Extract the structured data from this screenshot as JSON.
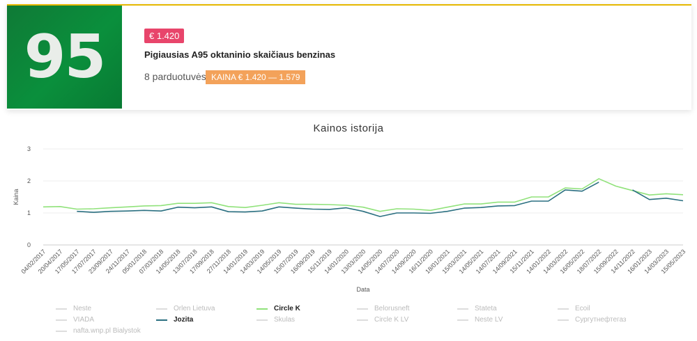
{
  "product": {
    "tile_text": "95",
    "price_badge": "€ 1.420",
    "headline": "Pigiausias A95 oktaninio skaičiaus benzinas",
    "stores_text": "8 parduotuvės",
    "range_badge": "KAINA € 1.420 — 1.579"
  },
  "colors": {
    "circle_k": "#90e27a",
    "jozita": "#2a6f80",
    "price_badge": "#e8456b",
    "range_badge": "#f3a25a"
  },
  "chart_data": {
    "type": "line",
    "title": "Kainos istorija",
    "xlabel": "Data",
    "ylabel": "Kaina",
    "ylim": [
      0,
      3
    ],
    "yticks": [
      "0",
      "1",
      "2",
      "3"
    ],
    "x": [
      "04/02/2017",
      "20/04/2017",
      "17/05/2017",
      "17/07/2017",
      "23/09/2017",
      "24/11/2017",
      "05/01/2018",
      "07/03/2018",
      "14/05/2018",
      "13/07/2018",
      "17/09/2018",
      "27/11/2018",
      "14/01/2019",
      "14/03/2019",
      "14/05/2019",
      "15/07/2019",
      "16/09/2019",
      "15/11/2019",
      "14/01/2020",
      "13/03/2020",
      "14/05/2020",
      "14/07/2020",
      "14/09/2020",
      "16/11/2020",
      "18/01/2021",
      "15/03/2021",
      "14/05/2021",
      "14/07/2021",
      "14/09/2021",
      "15/11/2021",
      "14/01/2022",
      "14/03/2022",
      "16/05/2022",
      "18/07/2022",
      "15/09/2022",
      "14/11/2022",
      "16/01/2023",
      "14/03/2023",
      "15/05/2023"
    ],
    "series": [
      {
        "name": "Circle K",
        "color": "#90e27a",
        "values": [
          1.19,
          1.2,
          1.12,
          1.13,
          1.16,
          1.19,
          1.22,
          1.23,
          1.3,
          1.3,
          1.32,
          1.2,
          1.17,
          1.24,
          1.32,
          1.27,
          1.27,
          1.26,
          1.24,
          1.18,
          1.05,
          1.13,
          1.12,
          1.08,
          1.18,
          1.28,
          1.28,
          1.34,
          1.34,
          1.5,
          1.5,
          1.78,
          1.75,
          2.07,
          1.84,
          1.7,
          1.56,
          1.6,
          1.57
        ]
      },
      {
        "name": "Jozita",
        "color": "#2a6f80",
        "values": [
          null,
          null,
          1.05,
          1.02,
          1.05,
          1.06,
          1.08,
          1.06,
          1.18,
          1.16,
          1.19,
          1.04,
          1.03,
          1.06,
          1.19,
          1.15,
          1.12,
          1.11,
          1.16,
          1.05,
          0.89,
          1.0,
          1.0,
          0.99,
          1.05,
          1.15,
          1.17,
          1.22,
          1.23,
          1.37,
          1.37,
          1.72,
          1.68,
          1.96,
          null,
          1.72,
          1.42,
          1.46,
          1.38
        ]
      }
    ],
    "legend": [
      "Neste",
      "Orlen Lietuva",
      "Circle K",
      "Belorusneft",
      "Stateta",
      "Ecoil",
      "VIADA",
      "Jozita",
      "Skulas",
      "Circle K LV",
      "Neste LV",
      "Сургутнефтегаз",
      "nafta.wnp.pl Bialystok"
    ],
    "legend_active": [
      "Circle K",
      "Jozita"
    ]
  }
}
